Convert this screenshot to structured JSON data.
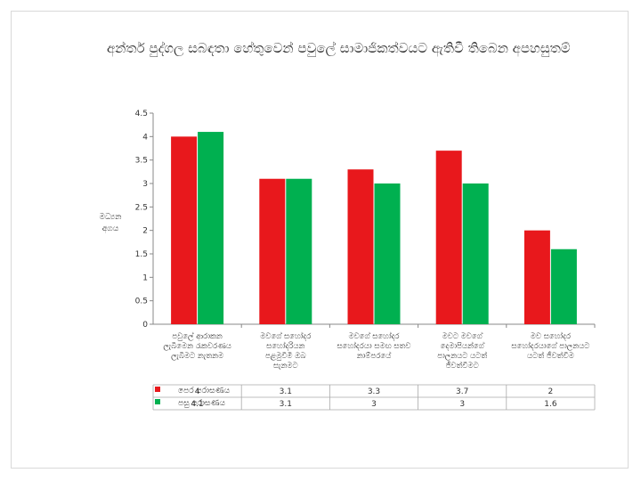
{
  "title": "අන්තර් පුද්ගල සබඳතා හේතුවෙන් පවුලේ සාමාජිකත්වයට ඇතිවී තිබෙන අපහසුතම්",
  "chart_data": {
    "type": "bar",
    "ylabel": "මධ්‍යන අගය",
    "ylim": [
      0,
      4.5
    ],
    "yticks": [
      "0",
      "0.5",
      "1",
      "1.5",
      "2",
      "2.5",
      "3",
      "3.5",
      "4",
      "4.5"
    ],
    "categories": [
      "පවුලේ ආරාකන ලැබීමෙන රැකවරණය ලැබීමට නැතනම",
      "මවගේ සහෝදර සහෝදරියන පළමුවිමි ඔබ සැනමට",
      "මවගේ සහෝදර සහෝදරයා සමඟ සතව නාම්පරයේ",
      "මවට මවගේ දෙමාපියන්ගේ පාලනයට යටත් ජීවත්වීමට",
      "මව සහෝදර සහෝදරයාගේ පාලනයට යටත් ජීවත්වීම"
    ],
    "series": [
      {
        "name": "පෙර පරාසණය",
        "color": "#e8181c",
        "values": [
          4,
          3.1,
          3.3,
          3.7,
          2
        ]
      },
      {
        "name": "පසු පරාසණය",
        "color": "#00b050",
        "values": [
          4.1,
          3.1,
          3,
          3,
          1.6
        ]
      }
    ],
    "table_values": [
      [
        "4",
        "3.1",
        "3.3",
        "3.7",
        "2"
      ],
      [
        "4.1",
        "3.1",
        "3",
        "3",
        "1.6"
      ]
    ],
    "grid": false
  }
}
